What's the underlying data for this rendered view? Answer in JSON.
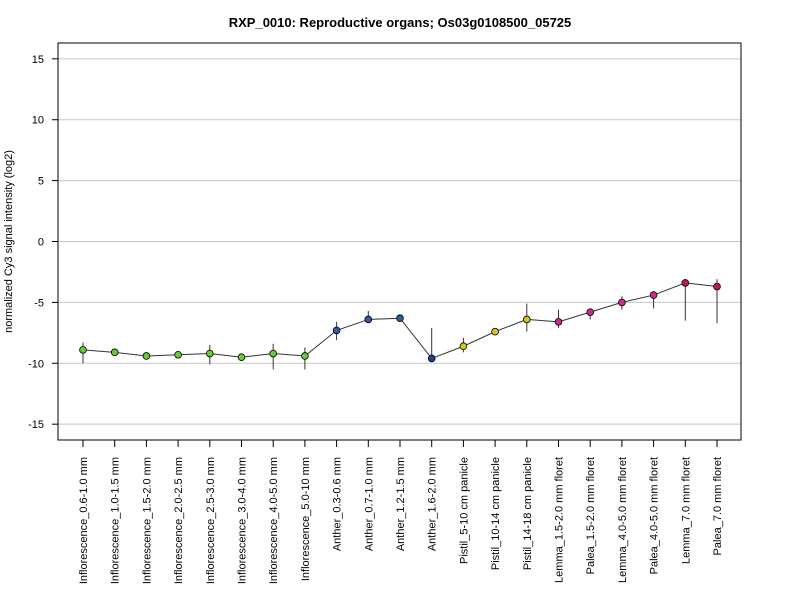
{
  "chart_data": {
    "type": "line",
    "title": "RXP_0010: Reproductive organs; Os03g0108500_05725",
    "xlabel": "",
    "ylabel": "normalized Cy3 signal intensity (log2)",
    "ylim": [
      -16.3,
      16.3
    ],
    "yticks": [
      -15,
      -10,
      -5,
      0,
      5,
      10,
      15
    ],
    "grid": true,
    "categories": [
      "Inflorescence_0.6-1.0 mm",
      "Inflorescence_1.0-1.5 mm",
      "Inflorescence_1.5-2.0 mm",
      "Inflorescence_2.0-2.5 mm",
      "Inflorescence_2.5-3.0 mm",
      "Inflorescence_3.0-4.0 mm",
      "Inflorescence_4.0-5.0 mm",
      "Inflorescence_5.0-10 mm",
      "Anther_0.3-0.6 mm",
      "Anther_0.7-1.0 mm",
      "Anther_1.2-1.5 mm",
      "Anther_1.6-2.0 mm",
      "Pistil_5-10 cm panicle",
      "Pistil_10-14 cm panicle",
      "Pistil_14-18 cm panicle",
      "Lemma_1.5-2.0 mm floret",
      "Palea_1.5-2.0 mm floret",
      "Lemma_4.0-5.0 mm floret",
      "Palea_4.0-5.0 mm floret",
      "Lemma_7.0 mm floret",
      "Palea_7.0 mm floret"
    ],
    "values": [
      -8.9,
      -9.1,
      -9.4,
      -9.3,
      -9.2,
      -9.5,
      -9.2,
      -9.4,
      -7.3,
      -6.4,
      -6.3,
      -9.6,
      -8.6,
      -7.4,
      -6.4,
      -6.6,
      -5.8,
      -5.0,
      -4.4,
      -3.4,
      -3.7
    ],
    "error_low": [
      -10.0,
      -9.4,
      -9.5,
      -9.4,
      -10.1,
      -9.7,
      -10.5,
      -10.5,
      -8.1,
      -6.6,
      -6.4,
      -9.7,
      -9.1,
      -7.7,
      -7.4,
      -7.1,
      -6.4,
      -5.6,
      -5.5,
      -6.5,
      -6.7
    ],
    "error_high": [
      -8.3,
      -8.8,
      -9.3,
      -9.2,
      -8.5,
      -9.3,
      -8.4,
      -8.7,
      -6.6,
      -5.7,
      -6.1,
      -7.1,
      -7.9,
      -7.1,
      -5.1,
      -5.6,
      -5.5,
      -4.5,
      -4.2,
      -3.1,
      -3.1
    ],
    "point_colors": [
      "#66cc33",
      "#66cc33",
      "#66cc33",
      "#66cc33",
      "#66cc33",
      "#66cc33",
      "#66cc33",
      "#66cc33",
      "#2e5aa8",
      "#2e5aa8",
      "#2e5aa8",
      "#1f3f9a",
      "#d6c41c",
      "#d6c41c",
      "#d6c41c",
      "#cc2a8c",
      "#cc2a8c",
      "#cc2a8c",
      "#cc2a8c",
      "#c8154f",
      "#c8154f"
    ],
    "line_color": "#333333",
    "grid_color": "#c8c8c8"
  }
}
